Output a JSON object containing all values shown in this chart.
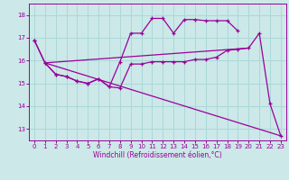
{
  "xlabel": "Windchill (Refroidissement éolien,°C)",
  "bg_color": "#cce8e8",
  "line_color": "#990099",
  "grid_color": "#aad8d8",
  "xlim": [
    -0.5,
    23.5
  ],
  "ylim": [
    12.5,
    18.5
  ],
  "yticks": [
    13,
    14,
    15,
    16,
    17,
    18
  ],
  "xticks": [
    0,
    1,
    2,
    3,
    4,
    5,
    6,
    7,
    8,
    9,
    10,
    11,
    12,
    13,
    14,
    15,
    16,
    17,
    18,
    19,
    20,
    21,
    22,
    23
  ],
  "series": [
    {
      "x": [
        0,
        1,
        2,
        3,
        4,
        5,
        6,
        7,
        8,
        9,
        10,
        11,
        12,
        13,
        14,
        15,
        16,
        17,
        18,
        19,
        20,
        21,
        22,
        23
      ],
      "y": [
        16.9,
        15.9,
        15.4,
        15.3,
        15.1,
        15.0,
        15.2,
        14.85,
        14.8,
        15.85,
        15.85,
        15.95,
        15.95,
        15.95,
        15.95,
        16.05,
        16.05,
        16.15,
        16.45,
        16.5,
        16.55,
        17.2,
        14.1,
        12.7
      ]
    },
    {
      "x": [
        0,
        1,
        2,
        3,
        4,
        5,
        6,
        7,
        8,
        9,
        10,
        11,
        12,
        13,
        14,
        15,
        16,
        17,
        18,
        19,
        20,
        21,
        22,
        23
      ],
      "y": [
        16.9,
        15.9,
        15.4,
        15.3,
        15.1,
        15.0,
        15.2,
        14.85,
        15.95,
        17.2,
        17.2,
        17.85,
        17.85,
        17.2,
        17.8,
        17.8,
        17.75,
        17.75,
        17.75,
        17.3,
        null,
        null,
        null,
        null
      ]
    },
    {
      "x": [
        1,
        23
      ],
      "y": [
        15.9,
        12.7
      ]
    },
    {
      "x": [
        1,
        20
      ],
      "y": [
        15.9,
        16.55
      ]
    }
  ]
}
